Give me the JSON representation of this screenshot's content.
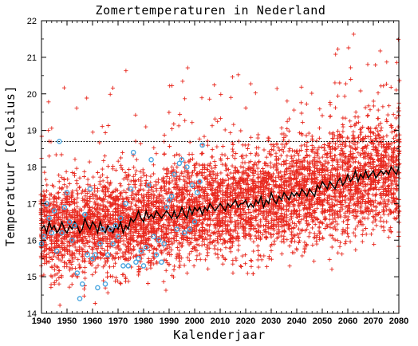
{
  "colors": {
    "scatter": "#e8281e",
    "observed": "#4aa6e0",
    "mean_line": "#000000",
    "reference": "#000000",
    "axes": "#000000",
    "background": "#ffffff"
  },
  "chart_data": {
    "type": "scatter",
    "title": "Zomertemperaturen in Nederland",
    "xlabel": "Kalenderjaar",
    "ylabel": "Temperatuur [Celsius]",
    "xlim": [
      1940,
      2080
    ],
    "ylim": [
      14,
      22
    ],
    "x_ticks": [
      1940,
      1950,
      1960,
      1970,
      1980,
      1990,
      2000,
      2010,
      2020,
      2030,
      2040,
      2050,
      2060,
      2070,
      2080
    ],
    "y_ticks": [
      14,
      15,
      16,
      17,
      18,
      19,
      20,
      21,
      22
    ],
    "grid": false,
    "legend": "none",
    "reference_line": {
      "y": 18.7,
      "style": "dotted"
    },
    "series": [
      {
        "marker": "plus",
        "color": "#e8281e",
        "description_of_values": "ensemble",
        "trend": {
          "x": [
            1940,
            1960,
            1980,
            2000,
            2020,
            2040,
            2060,
            2080
          ],
          "y": [
            16.3,
            16.35,
            16.55,
            16.85,
            17.05,
            17.3,
            17.6,
            17.95
          ]
        },
        "spread_sd": 0.62,
        "points_per_year": 40
      },
      {
        "marker": "circle",
        "color": "#4aa6e0",
        "points": [
          [
            1940,
            15.9
          ],
          [
            1941,
            16.1
          ],
          [
            1942,
            17.0
          ],
          [
            1943,
            16.6
          ],
          [
            1944,
            16.2
          ],
          [
            1945,
            16.8
          ],
          [
            1946,
            15.7
          ],
          [
            1947,
            18.7
          ],
          [
            1948,
            16.2
          ],
          [
            1949,
            16.9
          ],
          [
            1950,
            17.3
          ],
          [
            1951,
            16.5
          ],
          [
            1952,
            16.0
          ],
          [
            1953,
            16.4
          ],
          [
            1954,
            15.1
          ],
          [
            1955,
            14.4
          ],
          [
            1956,
            14.8
          ],
          [
            1957,
            16.7
          ],
          [
            1958,
            15.6
          ],
          [
            1959,
            17.4
          ],
          [
            1960,
            15.5
          ],
          [
            1961,
            15.6
          ],
          [
            1962,
            14.7
          ],
          [
            1963,
            15.9
          ],
          [
            1964,
            16.3
          ],
          [
            1965,
            14.8
          ],
          [
            1966,
            15.6
          ],
          [
            1967,
            16.3
          ],
          [
            1968,
            15.9
          ],
          [
            1969,
            16.4
          ],
          [
            1970,
            16.1
          ],
          [
            1971,
            16.6
          ],
          [
            1972,
            15.3
          ],
          [
            1973,
            17.0
          ],
          [
            1974,
            15.3
          ],
          [
            1975,
            17.4
          ],
          [
            1976,
            18.4
          ],
          [
            1977,
            15.4
          ],
          [
            1978,
            15.5
          ],
          [
            1979,
            15.7
          ],
          [
            1980,
            15.3
          ],
          [
            1981,
            15.8
          ],
          [
            1982,
            17.5
          ],
          [
            1983,
            18.2
          ],
          [
            1984,
            16.1
          ],
          [
            1985,
            15.6
          ],
          [
            1986,
            16.0
          ],
          [
            1987,
            15.4
          ],
          [
            1988,
            15.9
          ],
          [
            1989,
            16.9
          ],
          [
            1990,
            17.1
          ],
          [
            1991,
            17.2
          ],
          [
            1992,
            17.8
          ],
          [
            1993,
            16.3
          ],
          [
            1994,
            18.1
          ],
          [
            1995,
            18.2
          ],
          [
            1996,
            16.2
          ],
          [
            1997,
            18.0
          ],
          [
            1998,
            16.3
          ],
          [
            1999,
            17.5
          ],
          [
            2000,
            16.5
          ],
          [
            2001,
            17.3
          ],
          [
            2002,
            17.6
          ],
          [
            2003,
            18.6
          ]
        ]
      },
      {
        "marker": "line",
        "color": "#000000",
        "description_of_values": "mean",
        "x": [
          1940,
          1941,
          1942,
          1943,
          1944,
          1945,
          1946,
          1947,
          1948,
          1949,
          1950,
          1951,
          1952,
          1953,
          1954,
          1955,
          1956,
          1957,
          1958,
          1959,
          1960,
          1961,
          1962,
          1963,
          1964,
          1965,
          1966,
          1967,
          1968,
          1969,
          1970,
          1971,
          1972,
          1973,
          1974,
          1975,
          1976,
          1977,
          1978,
          1979,
          1980,
          1981,
          1982,
          1983,
          1984,
          1985,
          1986,
          1987,
          1988,
          1989,
          1990,
          1991,
          1992,
          1993,
          1994,
          1995,
          1996,
          1997,
          1998,
          1999,
          2000,
          2001,
          2002,
          2003,
          2004,
          2005,
          2006,
          2007,
          2008,
          2009,
          2010,
          2011,
          2012,
          2013,
          2014,
          2015,
          2016,
          2017,
          2018,
          2019,
          2020,
          2021,
          2022,
          2023,
          2024,
          2025,
          2026,
          2027,
          2028,
          2029,
          2030,
          2031,
          2032,
          2033,
          2034,
          2035,
          2036,
          2037,
          2038,
          2039,
          2040,
          2041,
          2042,
          2043,
          2044,
          2045,
          2046,
          2047,
          2048,
          2049,
          2050,
          2051,
          2052,
          2053,
          2054,
          2055,
          2056,
          2057,
          2058,
          2059,
          2060,
          2061,
          2062,
          2063,
          2064,
          2065,
          2066,
          2067,
          2068,
          2069,
          2070,
          2071,
          2072,
          2073,
          2074,
          2075,
          2076,
          2077,
          2078,
          2079,
          2080
        ],
        "y": [
          16.3,
          16.4,
          16.2,
          16.5,
          16.3,
          16.4,
          16.2,
          16.3,
          16.5,
          16.3,
          16.2,
          16.4,
          16.3,
          16.5,
          16.4,
          16.2,
          16.3,
          16.6,
          16.4,
          16.3,
          16.5,
          16.4,
          16.2,
          16.5,
          16.3,
          16.2,
          16.4,
          16.3,
          16.2,
          16.4,
          16.3,
          16.5,
          16.2,
          16.4,
          16.3,
          16.6,
          16.5,
          16.6,
          16.8,
          16.6,
          16.5,
          16.8,
          16.6,
          16.7,
          16.6,
          16.8,
          16.7,
          16.6,
          16.7,
          16.8,
          16.7,
          16.6,
          16.8,
          16.6,
          16.7,
          16.9,
          16.7,
          16.6,
          16.9,
          16.7,
          16.9,
          16.8,
          16.9,
          16.7,
          16.9,
          16.8,
          17.0,
          16.9,
          16.8,
          16.9,
          17.0,
          16.9,
          16.8,
          17.0,
          16.9,
          17.0,
          17.1,
          16.9,
          17.0,
          17.0,
          17.1,
          16.9,
          17.0,
          16.9,
          17.1,
          17.0,
          17.2,
          16.9,
          17.1,
          17.0,
          17.3,
          17.1,
          17.0,
          17.2,
          17.1,
          17.3,
          17.2,
          17.1,
          17.3,
          17.2,
          17.3,
          17.2,
          17.4,
          17.3,
          17.2,
          17.4,
          17.3,
          17.2,
          17.5,
          17.4,
          17.6,
          17.5,
          17.4,
          17.6,
          17.5,
          17.4,
          17.6,
          17.7,
          17.5,
          17.6,
          17.8,
          17.6,
          17.7,
          17.9,
          17.6,
          17.8,
          17.7,
          17.9,
          17.7,
          17.8,
          17.9,
          17.7,
          17.8,
          17.9,
          17.8,
          17.9,
          17.8,
          18.0,
          17.9,
          17.8,
          18.0
        ]
      }
    ]
  }
}
